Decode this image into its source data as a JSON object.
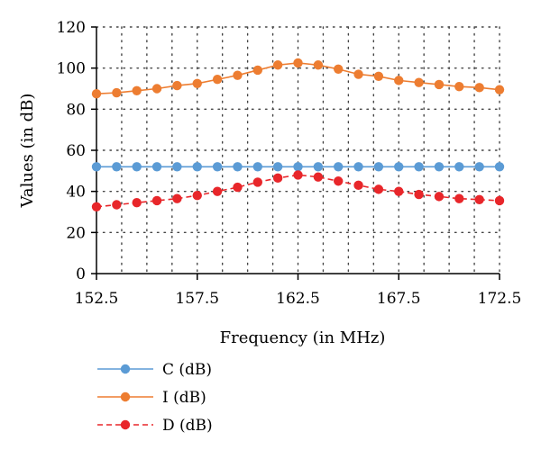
{
  "chart_data": {
    "type": "line",
    "xlabel": "Frequency (in MHz)",
    "ylabel": "Values (in dB)",
    "xlim": [
      152.5,
      172.5
    ],
    "ylim": [
      0,
      120
    ],
    "x_ticks": [
      "152.5",
      "157.5",
      "162.5",
      "167.5",
      "172.5"
    ],
    "y_ticks": [
      "0",
      "20",
      "40",
      "60",
      "80",
      "100",
      "120"
    ],
    "grid": "dotted",
    "legend_position": "bottom-left",
    "x": [
      152.5,
      153.5,
      154.5,
      155.5,
      156.5,
      157.5,
      158.5,
      159.5,
      160.5,
      161.5,
      162.5,
      163.5,
      164.5,
      165.5,
      166.5,
      167.5,
      168.5,
      169.5,
      170.5,
      171.5,
      172.5
    ],
    "series": [
      {
        "name": "C (dB)",
        "color": "#5b9bd5",
        "line": "solid",
        "values": [
          52,
          52,
          52,
          52,
          52,
          52,
          52,
          52,
          52,
          52,
          52,
          52,
          52,
          52,
          52,
          52,
          52,
          52,
          52,
          52,
          52
        ]
      },
      {
        "name": "I (dB)",
        "color": "#ed7d31",
        "line": "solid",
        "values": [
          87.5,
          88,
          89,
          90,
          91.5,
          92.5,
          94.5,
          96.5,
          99,
          101.5,
          102.5,
          101.5,
          99.5,
          97,
          96,
          94,
          93,
          92,
          91,
          90.5,
          89.5
        ]
      },
      {
        "name": "D (dB)",
        "color": "#e8262a",
        "line": "dashed",
        "values": [
          32.5,
          33.5,
          34.5,
          35.5,
          36.5,
          38,
          40,
          42,
          44.5,
          46.5,
          48,
          47,
          45,
          43,
          41,
          40,
          38.5,
          37.5,
          36.5,
          36,
          35.5
        ]
      }
    ]
  }
}
